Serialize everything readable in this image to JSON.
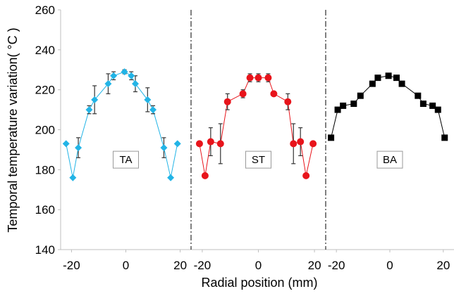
{
  "chart_data": {
    "type": "scatter",
    "xlabel": "Radial position (mm)",
    "ylabel": "Temporal temperature variation( °C )",
    "ylim": [
      140,
      260
    ],
    "y_ticks": [
      140,
      160,
      180,
      200,
      220,
      240,
      260
    ],
    "x_range_per_panel": [
      -24,
      24
    ],
    "x_ticks": [
      -20,
      0,
      20
    ],
    "grid": false,
    "panels": [
      {
        "label": "TA",
        "color": "#22b4e6",
        "marker": "diamond",
        "x": [
          -22,
          -19.5,
          -17.5,
          -13.5,
          -11.5,
          -6.5,
          -4.5,
          -0.5,
          2,
          3.5,
          8,
          10,
          14,
          16.5,
          19
        ],
        "y": [
          193,
          176,
          191,
          210,
          215,
          223,
          227,
          229,
          227,
          223,
          215,
          210,
          191,
          176,
          193
        ],
        "error": [
          0,
          0,
          5,
          2,
          7,
          5,
          2,
          1,
          2,
          4,
          6,
          2,
          5,
          0,
          0
        ]
      },
      {
        "label": "ST",
        "color": "#e8141b",
        "marker": "circle",
        "x": [
          -21,
          -19,
          -17,
          -13.5,
          -11,
          -5.5,
          -3,
          0,
          3.5,
          5.5,
          10.5,
          12.5,
          15,
          17,
          19.5
        ],
        "y": [
          193,
          177,
          194,
          193,
          214,
          218,
          226,
          226,
          226,
          218,
          214,
          193,
          194,
          177,
          193
        ],
        "error": [
          0,
          0,
          7,
          10,
          4,
          2,
          2,
          2,
          2,
          0,
          4,
          10,
          7,
          0,
          0
        ]
      },
      {
        "label": "BA",
        "color": "#000000",
        "marker": "square",
        "x": [
          -22,
          -19.5,
          -17.5,
          -13.5,
          -11,
          -6.5,
          -4.5,
          -0.5,
          2.5,
          4.5,
          10.5,
          12.5,
          16,
          18,
          20.5
        ],
        "y": [
          196,
          210,
          212,
          213,
          217,
          223,
          226,
          227,
          226,
          223,
          217,
          213,
          212,
          210,
          196
        ],
        "error": [
          0,
          0,
          0,
          0,
          0,
          0,
          0,
          0,
          0,
          0,
          0,
          0,
          0,
          0,
          0
        ]
      }
    ]
  }
}
